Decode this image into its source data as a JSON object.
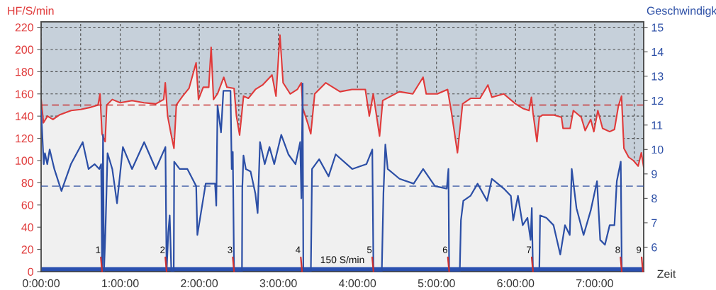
{
  "chart_data": {
    "type": "line",
    "xlabel": "Zeit",
    "ylabel": "HF/S/min",
    "y2label": "Geschwindigk",
    "xlim": [
      0,
      7.62
    ],
    "xticks": [
      {
        "value": 0,
        "label": "0:00:00"
      },
      {
        "value": 0.5,
        "label": null
      },
      {
        "value": 1,
        "label": "1:00:00"
      },
      {
        "value": 1.5,
        "label": null
      },
      {
        "value": 2,
        "label": "2:00:00"
      },
      {
        "value": 2.5,
        "label": null
      },
      {
        "value": 3,
        "label": "3:00:00"
      },
      {
        "value": 3.5,
        "label": null
      },
      {
        "value": 4,
        "label": "4:00:00"
      },
      {
        "value": 4.5,
        "label": null
      },
      {
        "value": 5,
        "label": "5:00:00"
      },
      {
        "value": 5.5,
        "label": null
      },
      {
        "value": 6,
        "label": "6:00:00"
      },
      {
        "value": 6.5,
        "label": null
      },
      {
        "value": 7,
        "label": "7:00:00"
      },
      {
        "value": 7.5,
        "label": null
      }
    ],
    "ylim": [
      0,
      225
    ],
    "yticks": [
      0,
      20,
      40,
      60,
      80,
      100,
      120,
      140,
      160,
      180,
      200,
      220
    ],
    "y2lim": [
      5,
      15.23
    ],
    "y2ticks": [
      6,
      7,
      8,
      9,
      10,
      11,
      12,
      13,
      14,
      15
    ],
    "grid": true,
    "series": [
      {
        "type": "area",
        "color": "#e03a3a",
        "x": [
          0,
          0.03,
          0.08,
          0.15,
          0.23,
          0.38,
          0.5,
          0.63,
          0.72,
          0.745,
          0.77,
          0.81,
          0.83,
          0.9,
          1.0,
          1.15,
          1.3,
          1.45,
          1.55,
          1.57,
          1.6,
          1.64,
          1.68,
          1.71,
          1.79,
          1.87,
          1.96,
          1.99,
          2.05,
          2.12,
          2.15,
          2.18,
          2.23,
          2.31,
          2.35,
          2.44,
          2.47,
          2.51,
          2.56,
          2.62,
          2.71,
          2.8,
          2.92,
          2.97,
          3.02,
          3.06,
          3.15,
          3.24,
          3.29,
          3.31,
          3.37,
          3.41,
          3.46,
          3.6,
          3.78,
          3.93,
          4.1,
          4.15,
          4.2,
          4.28,
          4.32,
          4.53,
          4.7,
          4.83,
          4.87,
          5.01,
          5.14,
          5.19,
          5.265,
          5.33,
          5.43,
          5.55,
          5.65,
          5.7,
          5.85,
          6.0,
          6.09,
          6.17,
          6.2,
          6.22,
          6.27,
          6.3,
          6.34,
          6.48,
          6.58,
          6.6,
          6.69,
          6.73,
          6.83,
          6.88,
          6.95,
          6.99,
          7.04,
          7.1,
          7.19,
          7.25,
          7.3,
          7.34,
          7.355,
          7.37,
          7.43,
          7.49,
          7.55,
          7.59,
          7.62
        ],
        "values": [
          155,
          134,
          140,
          137,
          141,
          145,
          146,
          148,
          150,
          160,
          124,
          117,
          150,
          155,
          152,
          154,
          152,
          151,
          155,
          170,
          140,
          125,
          111,
          150,
          158,
          165,
          188,
          155,
          166,
          166,
          202,
          155,
          160,
          175,
          166,
          165,
          140,
          123,
          158,
          156,
          164,
          168,
          177,
          158,
          213,
          170,
          160,
          164,
          170,
          147,
          134,
          124,
          160,
          170,
          162,
          164,
          164,
          140,
          160,
          122,
          154,
          162,
          160,
          175,
          160,
          160,
          164,
          143,
          107,
          151,
          156,
          156,
          168,
          157,
          160,
          151,
          147,
          145,
          157,
          143,
          117,
          139,
          141,
          141,
          139,
          129,
          129,
          145,
          139,
          127,
          137,
          126,
          145,
          129,
          126,
          128,
          149,
          158,
          134,
          111,
          103,
          100,
          95,
          107,
          94
        ]
      },
      {
        "axis": "y2",
        "color": "#2c4fa6",
        "x": [
          0,
          0.033,
          0.048,
          0.078,
          0.108,
          0.167,
          0.257,
          0.377,
          0.526,
          0.6,
          0.676,
          0.736,
          0.759,
          0.771,
          0.783,
          0.795,
          0.813,
          0.84,
          0.9,
          0.96,
          1.034,
          1.15,
          1.303,
          1.45,
          1.572,
          1.587,
          1.608,
          1.626,
          1.647,
          1.677,
          1.683,
          1.752,
          1.85,
          1.961,
          1.976,
          2.021,
          2.081,
          2.2,
          2.215,
          2.231,
          2.275,
          2.305,
          2.395,
          2.41,
          2.424,
          2.44,
          2.54,
          2.544,
          2.559,
          2.589,
          2.649,
          2.709,
          2.738,
          2.768,
          2.828,
          2.888,
          2.948,
          3.037,
          3.127,
          3.217,
          3.276,
          3.291,
          3.307,
          3.316,
          3.411,
          3.426,
          3.516,
          3.635,
          3.725,
          3.934,
          4.114,
          4.188,
          4.203,
          4.308,
          4.329,
          4.353,
          4.383,
          4.532,
          4.711,
          4.831,
          4.98,
          5.13,
          5.151,
          5.16,
          5.294,
          5.309,
          5.339,
          5.429,
          5.52,
          5.64,
          5.7,
          5.85,
          5.94,
          5.97,
          6.03,
          6.09,
          6.15,
          6.19,
          6.205,
          6.22,
          6.3,
          6.31,
          6.39,
          6.48,
          6.565,
          6.625,
          6.685,
          6.71,
          6.77,
          6.86,
          6.95,
          7.03,
          7.07,
          7.13,
          7.19,
          7.25,
          7.28,
          7.33,
          7.343,
          7.62
        ],
        "values": [
          11.6,
          9.4,
          9.85,
          9.4,
          10.0,
          9.2,
          8.3,
          9.4,
          10.3,
          9.2,
          9.4,
          9.2,
          9.4,
          5,
          10.6,
          5,
          6.6,
          9.85,
          9.2,
          7.8,
          10.1,
          9.2,
          10.3,
          9.2,
          10.1,
          5,
          6.6,
          7.3,
          5,
          5,
          9.5,
          9.2,
          9.2,
          8.5,
          6.5,
          7.4,
          8.6,
          8.6,
          7.7,
          11.8,
          10.7,
          12.4,
          12.4,
          9.2,
          9.9,
          5,
          5,
          8.4,
          9.75,
          9.2,
          9.1,
          8.2,
          7.4,
          10.3,
          9.4,
          10.1,
          9.4,
          10.6,
          9.8,
          9.4,
          10.3,
          8.0,
          12.7,
          5,
          5,
          9.2,
          9.6,
          8.9,
          9.8,
          9.2,
          9.4,
          10.0,
          5,
          5,
          8.2,
          10.2,
          9.2,
          8.8,
          8.6,
          9.2,
          8.5,
          8.4,
          9.2,
          5,
          5,
          7.1,
          7.9,
          8.1,
          8.6,
          7.9,
          8.8,
          8.4,
          8.1,
          7.1,
          8.1,
          6.9,
          7.2,
          6.3,
          7.6,
          5,
          5,
          7.3,
          7.2,
          6.9,
          5.7,
          6.9,
          6.5,
          9.2,
          7.6,
          6.5,
          7.5,
          8.7,
          6.3,
          6.1,
          6.9,
          6.9,
          8.7,
          9.5,
          5,
          5
        ]
      }
    ],
    "ref_lines": [
      {
        "axis": "y",
        "value": 150,
        "color": "#c83030",
        "line_style": "dashed"
      },
      {
        "axis": "y2",
        "value": 8.5,
        "color": "#3050a0",
        "line_style": "dashed"
      }
    ],
    "annotations": [
      {
        "text": "1",
        "x": 0.771,
        "y": 0
      },
      {
        "text": "2",
        "x": 1.587,
        "y": 0
      },
      {
        "text": "3",
        "x": 2.44,
        "y": 0
      },
      {
        "text": "4",
        "x": 3.3,
        "y": 0
      },
      {
        "text": "5",
        "x": 4.203,
        "y": 0
      },
      {
        "text": "6",
        "x": 5.16,
        "y": 0
      },
      {
        "text": "7",
        "x": 6.22,
        "y": 0
      },
      {
        "text": "8",
        "x": 7.343,
        "y": 0
      },
      {
        "text": "9",
        "x": 7.61,
        "y": 0
      }
    ],
    "bands": [
      {
        "axis": "y",
        "from": 0,
        "to": 4,
        "label": "150 S/min",
        "color": "#2a50b0"
      }
    ]
  }
}
